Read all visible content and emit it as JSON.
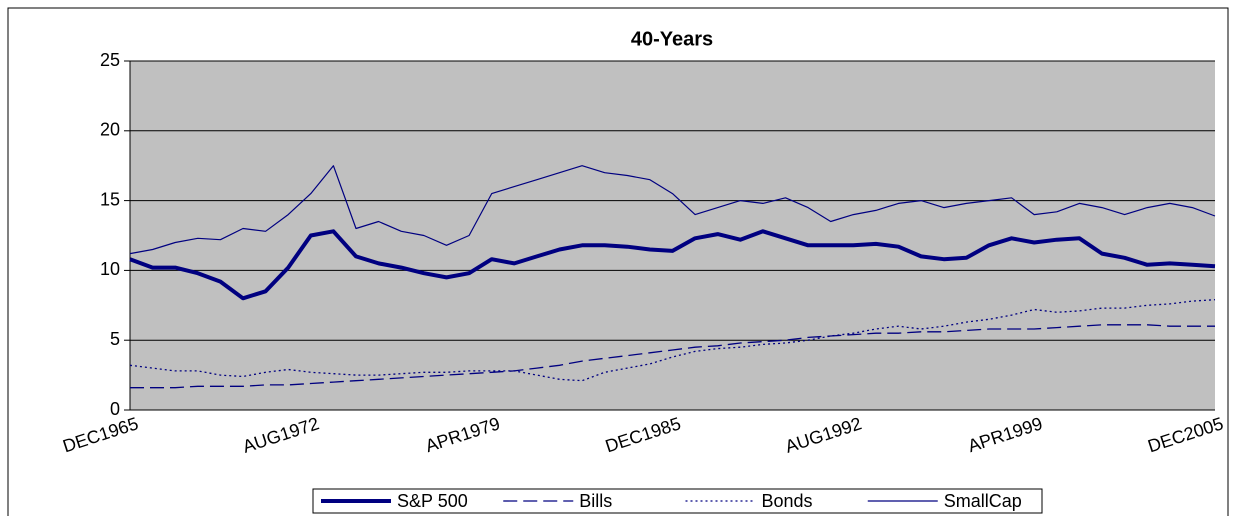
{
  "chart_data": {
    "type": "line",
    "title": "40-Years",
    "categories": [
      "DEC1965",
      null,
      null,
      null,
      null,
      null,
      null,
      null,
      "AUG1972",
      null,
      null,
      null,
      null,
      null,
      null,
      null,
      "APR1979",
      null,
      null,
      null,
      null,
      null,
      null,
      null,
      "DEC1985",
      null,
      null,
      null,
      null,
      null,
      null,
      null,
      "AUG1992",
      null,
      null,
      null,
      null,
      null,
      null,
      null,
      "APR1999",
      null,
      null,
      null,
      null,
      null,
      null,
      null,
      "DEC2005"
    ],
    "series": [
      {
        "name": "S&P 500",
        "color": "#000080",
        "width": 4,
        "dash": "solid",
        "values": [
          10.8,
          10.2,
          10.2,
          9.8,
          9.2,
          8.0,
          8.5,
          10.2,
          12.5,
          12.8,
          11.0,
          10.5,
          10.2,
          9.8,
          9.5,
          9.8,
          10.8,
          10.5,
          11.0,
          11.5,
          11.8,
          11.8,
          11.7,
          11.5,
          11.4,
          12.3,
          12.6,
          12.2,
          12.8,
          12.3,
          11.8,
          11.8,
          11.8,
          11.9,
          11.7,
          11.0,
          10.8,
          10.9,
          11.8,
          12.3,
          12.0,
          12.2,
          12.3,
          11.2,
          10.9,
          10.4,
          10.5,
          10.4,
          10.3
        ]
      },
      {
        "name": "Bills",
        "color": "#000080",
        "width": 1.3,
        "dash": "dashed",
        "values": [
          1.6,
          1.6,
          1.6,
          1.7,
          1.7,
          1.7,
          1.8,
          1.8,
          1.9,
          2.0,
          2.1,
          2.2,
          2.3,
          2.4,
          2.5,
          2.6,
          2.7,
          2.8,
          3.0,
          3.2,
          3.5,
          3.7,
          3.9,
          4.1,
          4.3,
          4.5,
          4.6,
          4.8,
          4.9,
          5.0,
          5.2,
          5.3,
          5.4,
          5.5,
          5.5,
          5.6,
          5.6,
          5.7,
          5.8,
          5.8,
          5.8,
          5.9,
          6.0,
          6.1,
          6.1,
          6.1,
          6.0,
          6.0,
          6.0
        ]
      },
      {
        "name": "Bonds",
        "color": "#000080",
        "width": 1.3,
        "dash": "dotted",
        "values": [
          3.2,
          3.0,
          2.8,
          2.8,
          2.5,
          2.4,
          2.7,
          2.9,
          2.7,
          2.6,
          2.5,
          2.5,
          2.6,
          2.7,
          2.7,
          2.8,
          2.8,
          2.8,
          2.5,
          2.2,
          2.1,
          2.7,
          3.0,
          3.3,
          3.8,
          4.2,
          4.4,
          4.5,
          4.7,
          4.8,
          5.0,
          5.3,
          5.5,
          5.8,
          6.0,
          5.8,
          6.0,
          6.3,
          6.5,
          6.8,
          7.2,
          7.0,
          7.1,
          7.3,
          7.3,
          7.5,
          7.6,
          7.8,
          7.9
        ]
      },
      {
        "name": "SmallCap",
        "color": "#000080",
        "width": 1.2,
        "dash": "solid",
        "values": [
          11.2,
          11.5,
          12.0,
          12.3,
          12.2,
          13.0,
          12.8,
          14.0,
          15.5,
          17.5,
          13.0,
          13.5,
          12.8,
          12.5,
          11.8,
          12.5,
          15.5,
          16.0,
          16.5,
          17.0,
          17.5,
          17.0,
          16.8,
          16.5,
          15.5,
          14.0,
          14.5,
          15.0,
          14.8,
          15.2,
          14.5,
          13.5,
          14.0,
          14.3,
          14.8,
          15.0,
          14.5,
          14.8,
          15.0,
          15.2,
          14.0,
          14.2,
          14.8,
          14.5,
          14.0,
          14.5,
          14.8,
          14.5,
          13.9
        ]
      }
    ],
    "ylim": [
      0,
      25
    ],
    "yticks": [
      0,
      5,
      10,
      15,
      20,
      25
    ],
    "grid": true,
    "plot_background": "#c0c0c0",
    "legend": "bottom"
  }
}
